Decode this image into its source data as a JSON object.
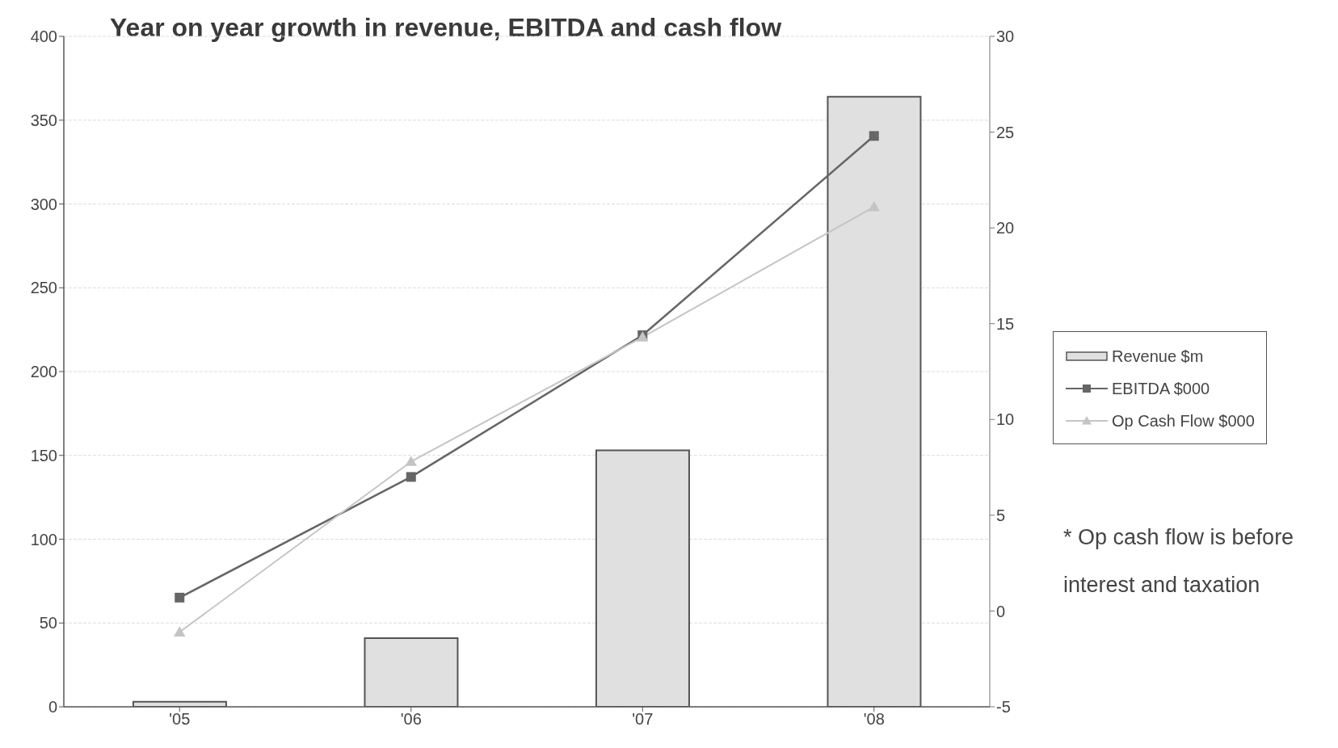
{
  "chart_data": {
    "type": "bar",
    "title": "Year on year growth in revenue, EBITDA and cash flow",
    "categories": [
      "'05",
      "'06",
      "'07",
      "'08"
    ],
    "series": [
      {
        "name": "Revenue $m",
        "color": "#e0e0e0",
        "values": [
          3,
          41,
          153,
          364
        ]
      },
      {
        "name": "EBITDA $000",
        "type": "line",
        "axis": "y2",
        "color": "#666666",
        "marker": "square",
        "values": [
          0.7,
          7.0,
          14.4,
          24.8
        ]
      },
      {
        "name": "Op Cash Flow $000",
        "type": "line",
        "axis": "y2",
        "color": "#c4c4c4",
        "marker": "triangle",
        "values": [
          -1.1,
          7.8,
          14.3,
          21.1
        ]
      }
    ],
    "ylim": [
      0,
      400
    ],
    "yticks": [
      0,
      50,
      100,
      150,
      200,
      250,
      300,
      350,
      400
    ],
    "y2lim": [
      -5,
      30
    ],
    "y2ticks": [
      -5,
      0,
      5,
      10,
      15,
      20,
      25,
      30
    ],
    "grid": "y",
    "legend": "right",
    "annotations": [
      "* Op cash flow is before interest and taxation"
    ]
  }
}
